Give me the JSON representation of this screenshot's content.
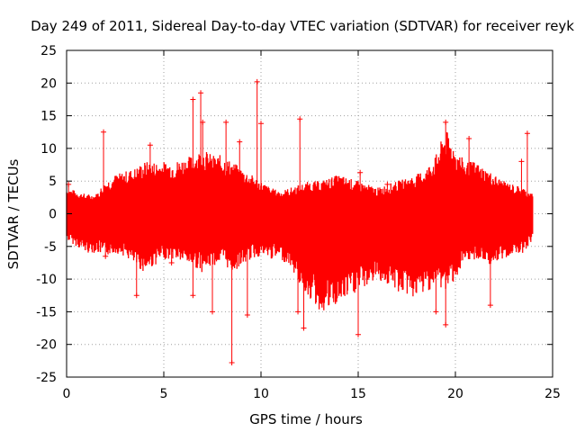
{
  "chart_data": {
    "type": "scatter",
    "title": "Day 249 of 2011, Sidereal Day-to-day VTEC variation (SDTVAR) for receiver reyk",
    "xlabel": "GPS time / hours",
    "ylabel": "SDTVAR / TECUs",
    "xlim": [
      0,
      25
    ],
    "ylim": [
      -25,
      25
    ],
    "x_ticks": [
      "0",
      "5",
      "10",
      "15",
      "20",
      "25"
    ],
    "y_ticks": [
      "25",
      "20",
      "15",
      "10",
      "5",
      "0",
      "-5",
      "-10",
      "-15",
      "-20",
      "-25"
    ],
    "grid": true,
    "series_color": "#ff0000",
    "series": [
      {
        "name": "SDTVAR",
        "envelope": {
          "x": [
            0,
            0.5,
            1,
            1.5,
            2,
            2.5,
            3,
            3.5,
            4,
            4.5,
            5,
            5.5,
            6,
            6.5,
            7,
            7.5,
            8,
            8.5,
            9,
            9.5,
            10,
            10.5,
            11,
            11.5,
            12,
            12.5,
            13,
            13.5,
            14,
            14.5,
            15,
            15.5,
            16,
            16.5,
            17,
            17.5,
            18,
            18.5,
            19,
            19.5,
            20,
            20.5,
            21,
            21.5,
            22,
            22.5,
            23,
            23.5,
            24
          ],
          "upper": [
            4,
            3.5,
            3,
            3,
            5,
            6,
            6.5,
            7,
            8,
            8,
            8,
            8,
            8.5,
            9,
            10,
            9,
            9,
            8,
            7,
            6,
            5,
            4,
            3.5,
            4,
            4.5,
            5,
            5,
            5.5,
            6,
            5.5,
            5,
            4.5,
            4,
            4.5,
            5,
            5.5,
            6,
            7,
            9,
            13,
            10,
            8,
            8,
            7,
            6,
            5,
            4.5,
            4,
            3
          ],
          "lower": [
            -4,
            -5,
            -6,
            -6,
            -6.5,
            -6,
            -6.5,
            -8,
            -9,
            -8,
            -7,
            -7,
            -7.5,
            -8,
            -9,
            -8,
            -7.5,
            -9,
            -8,
            -7,
            -6.5,
            -7,
            -7,
            -8,
            -11,
            -13,
            -15,
            -15,
            -14,
            -13,
            -12,
            -11,
            -10,
            -11,
            -12,
            -12.5,
            -13,
            -12,
            -11,
            -12,
            -10,
            -8,
            -7,
            -7.5,
            -8,
            -7,
            -6,
            -6,
            -4
          ]
        },
        "spikes": [
          {
            "x": 0.1,
            "y": 4.5
          },
          {
            "x": 1.9,
            "y": 12.5
          },
          {
            "x": 2.0,
            "y": -6.5
          },
          {
            "x": 3.6,
            "y": -12.5
          },
          {
            "x": 4.3,
            "y": 10.5
          },
          {
            "x": 5.4,
            "y": -7.5
          },
          {
            "x": 6.5,
            "y": 17.5
          },
          {
            "x": 6.5,
            "y": -12.5
          },
          {
            "x": 6.9,
            "y": 18.5
          },
          {
            "x": 7.5,
            "y": -15
          },
          {
            "x": 7.0,
            "y": 14
          },
          {
            "x": 8.5,
            "y": -22.8
          },
          {
            "x": 8.2,
            "y": 14
          },
          {
            "x": 8.9,
            "y": 11
          },
          {
            "x": 9.3,
            "y": -15.5
          },
          {
            "x": 9.8,
            "y": 20.2
          },
          {
            "x": 10.0,
            "y": 13.8
          },
          {
            "x": 12.0,
            "y": 14.5
          },
          {
            "x": 12.2,
            "y": -17.5
          },
          {
            "x": 11.9,
            "y": -15
          },
          {
            "x": 15.1,
            "y": 6.3
          },
          {
            "x": 15.0,
            "y": -18.5
          },
          {
            "x": 16.5,
            "y": 4.5
          },
          {
            "x": 19.0,
            "y": -15
          },
          {
            "x": 19.5,
            "y": 14
          },
          {
            "x": 19.5,
            "y": -17
          },
          {
            "x": 20.7,
            "y": 11.5
          },
          {
            "x": 21.8,
            "y": -14
          },
          {
            "x": 23.7,
            "y": 12.3
          },
          {
            "x": 23.4,
            "y": 8
          }
        ]
      }
    ]
  }
}
